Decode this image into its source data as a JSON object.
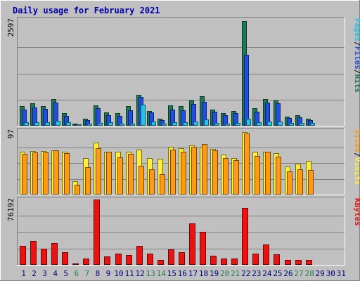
{
  "chart_data": {
    "type": "bar",
    "title": "Daily usage for February 2021",
    "days": [
      "1",
      "2",
      "3",
      "4",
      "5",
      "6",
      "7",
      "8",
      "9",
      "10",
      "11",
      "12",
      "13",
      "14",
      "15",
      "16",
      "17",
      "18",
      "19",
      "20",
      "21",
      "22",
      "23",
      "24",
      "25",
      "26",
      "27",
      "28",
      "29",
      "30",
      "31"
    ],
    "weekend_days": [
      "6",
      "7",
      "13",
      "14",
      "20",
      "21",
      "27",
      "28"
    ],
    "panels": [
      {
        "id": "hits",
        "max_label": "2597",
        "ymax": 2597,
        "series": [
          {
            "name": "Hits",
            "color": "#1b7a55",
            "values": [
              480,
              560,
              480,
              670,
              310,
              45,
              170,
              510,
              340,
              310,
              480,
              760,
              360,
              180,
              500,
              480,
              620,
              730,
              410,
              310,
              370,
              2597,
              430,
              670,
              620,
              230,
              260,
              170,
              0,
              0,
              0
            ]
          },
          {
            "name": "Files",
            "color": "#1f4fe0",
            "values": [
              400,
              460,
              420,
              580,
              240,
              35,
              140,
              430,
              270,
              250,
              380,
              720,
              330,
              145,
              410,
              380,
              540,
              600,
              350,
              260,
              320,
              1770,
              350,
              580,
              560,
              200,
              210,
              140,
              0,
              0,
              0
            ]
          },
          {
            "name": "Pages",
            "color": "#22c3e8",
            "values": [
              80,
              85,
              85,
              130,
              95,
              15,
              55,
              75,
              80,
              60,
              55,
              520,
              110,
              50,
              85,
              90,
              110,
              150,
              70,
              55,
              75,
              180,
              95,
              110,
              100,
              70,
              75,
              75,
              0,
              0,
              0
            ]
          }
        ],
        "side_labels": [
          "Pages",
          "/",
          "Files",
          "/",
          "Hits"
        ]
      },
      {
        "id": "visits",
        "max_label": "97",
        "ymax": 97,
        "series": [
          {
            "name": "Visits",
            "color": "#ffee33",
            "values": [
              66,
              67,
              67,
              68,
              66,
              21,
              56,
              80,
              66,
              66,
              66,
              70,
              57,
              55,
              74,
              72,
              76,
              74,
              71,
              62,
              57,
              97,
              66,
              66,
              64,
              43,
              48,
              52,
              0,
              0,
              0
            ]
          },
          {
            "name": "Sites",
            "color": "#ff9a11",
            "values": [
              63,
              65,
              65,
              68,
              64,
              15,
              42,
              72,
              66,
              58,
              63,
              45,
              39,
              31,
              70,
              66,
              74,
              78,
              68,
              57,
              53,
              95,
              60,
              66,
              59,
              36,
              39,
              38,
              0,
              0,
              0
            ]
          }
        ],
        "side_labels": [
          "Sites",
          "/",
          "Visits"
        ]
      },
      {
        "id": "kbytes",
        "max_label": "76192",
        "ymax": 76192,
        "series": [
          {
            "name": "KBytes",
            "color": "#ee1111",
            "values": [
              22000,
              27500,
              18500,
              25500,
              15000,
              1500,
              7000,
              76192,
              9500,
              13000,
              11500,
              22000,
              12900,
              5500,
              18000,
              14500,
              48500,
              38500,
              10500,
              7000,
              7500,
              66000,
              13000,
              24000,
              12000,
              5500,
              5500,
              5500,
              0,
              0,
              0
            ]
          }
        ],
        "side_labels": [
          "KBytes"
        ]
      }
    ],
    "colors": {
      "background": "#c0c0c0",
      "frame": "#808080",
      "title": "#0000aa",
      "weekday_label": "#000080",
      "weekend_label": "#227f55"
    }
  }
}
